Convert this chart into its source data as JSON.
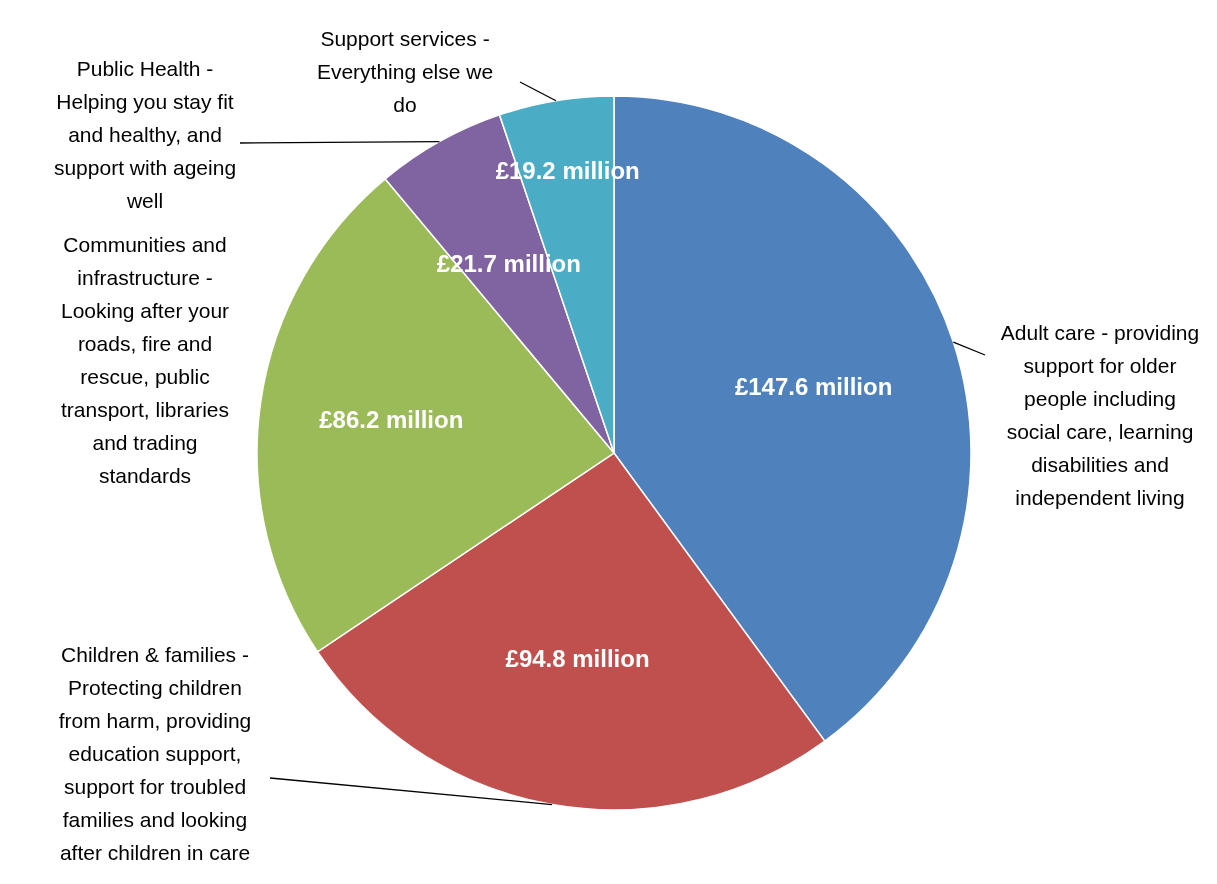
{
  "chart_data": {
    "type": "pie",
    "categories": [
      "Adult care - providing support for older people including social care, learning disabilities and independent living",
      "Children & families - Protecting children from harm, providing education support, support for troubled families and looking after children in care",
      "Communities and infrastructure - Looking after your roads, fire and rescue, public transport, libraries and trading standards",
      "Public Health - Helping you stay fit and healthy, and support with ageing well",
      "Support services - Everything else we do"
    ],
    "values": [
      147.6,
      94.8,
      86.2,
      21.7,
      19.2
    ],
    "value_labels": [
      "£147.6 million",
      "£94.8 million",
      "£86.2 million",
      "£21.7 million",
      "£19.2 million"
    ],
    "colors": [
      "#4f81bd",
      "#c0504d",
      "#9bbb59",
      "#8064a2",
      "#4bacc6"
    ]
  }
}
